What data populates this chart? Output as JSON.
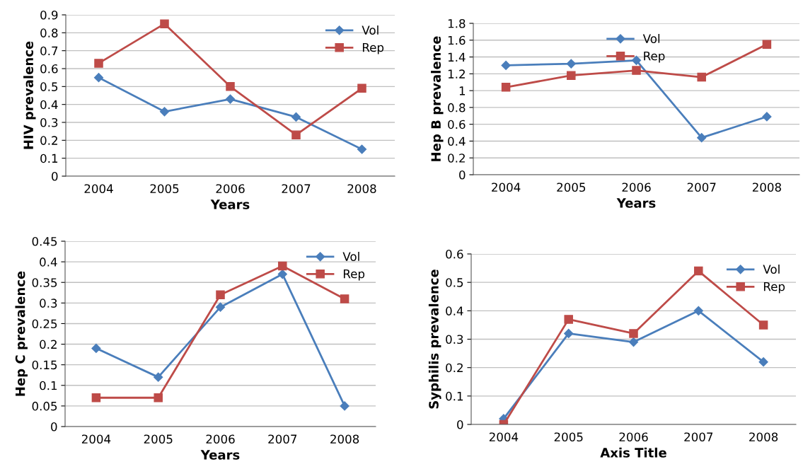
{
  "chart_data": [
    {
      "type": "line",
      "categories": [
        "2004",
        "2005",
        "2006",
        "2007",
        "2008"
      ],
      "xlabel": "Years",
      "ylabel": "HIV prevalence",
      "ylim": [
        0,
        0.9
      ],
      "yticks": [
        0,
        0.1,
        0.2,
        0.3,
        0.4,
        0.5,
        0.6,
        0.7,
        0.8,
        0.9
      ],
      "grid": "y",
      "legend": "top right",
      "series": [
        {
          "name": "Vol",
          "color": "#4a7ebb",
          "marker": "diamond",
          "values": [
            0.55,
            0.36,
            0.43,
            0.33,
            0.15
          ]
        },
        {
          "name": "Rep",
          "color": "#be4b48",
          "marker": "square",
          "values": [
            0.63,
            0.85,
            0.5,
            0.23,
            0.49
          ]
        }
      ]
    },
    {
      "type": "line",
      "categories": [
        "2004",
        "2005",
        "2006",
        "2007",
        "2008"
      ],
      "xlabel": "Years",
      "ylabel": "Hep B prevalence",
      "ylim": [
        0,
        1.8
      ],
      "yticks": [
        0,
        0.2,
        0.4,
        0.6,
        0.8,
        1,
        1.2,
        1.4,
        1.6,
        1.8
      ],
      "grid": "y",
      "legend": "top",
      "series": [
        {
          "name": "Vol",
          "color": "#4a7ebb",
          "marker": "diamond",
          "values": [
            1.3,
            1.32,
            1.36,
            0.44,
            0.69
          ]
        },
        {
          "name": "Rep",
          "color": "#be4b48",
          "marker": "square",
          "values": [
            1.04,
            1.18,
            1.24,
            1.16,
            1.55
          ]
        }
      ]
    },
    {
      "type": "line",
      "categories": [
        "2004",
        "2005",
        "2006",
        "2007",
        "2008"
      ],
      "xlabel": "Years",
      "ylabel": "Hep C prevalence",
      "ylim": [
        0,
        0.45
      ],
      "yticks": [
        0,
        0.05,
        0.1,
        0.15,
        0.2,
        0.25,
        0.3,
        0.35,
        0.4,
        0.45
      ],
      "grid": "y",
      "legend": "top right",
      "series": [
        {
          "name": "Vol",
          "color": "#4a7ebb",
          "marker": "diamond",
          "values": [
            0.19,
            0.12,
            0.29,
            0.37,
            0.05
          ]
        },
        {
          "name": "Rep",
          "color": "#be4b48",
          "marker": "square",
          "values": [
            0.07,
            0.07,
            0.32,
            0.39,
            0.31
          ]
        }
      ]
    },
    {
      "type": "line",
      "categories": [
        "2004",
        "2005",
        "2006",
        "2007",
        "2008"
      ],
      "xlabel": "Axis Title",
      "ylabel": "Syphilis prevalence",
      "ylim": [
        0,
        0.6
      ],
      "yticks": [
        0,
        0.1,
        0.2,
        0.3,
        0.4,
        0.5,
        0.6
      ],
      "grid": "y",
      "legend": "top right",
      "series": [
        {
          "name": "Vol",
          "color": "#4a7ebb",
          "marker": "diamond",
          "values": [
            0.02,
            0.32,
            0.29,
            0.4,
            0.22
          ]
        },
        {
          "name": "Rep",
          "color": "#be4b48",
          "marker": "square",
          "values": [
            0.0,
            0.37,
            0.32,
            0.54,
            0.35
          ]
        }
      ]
    }
  ]
}
